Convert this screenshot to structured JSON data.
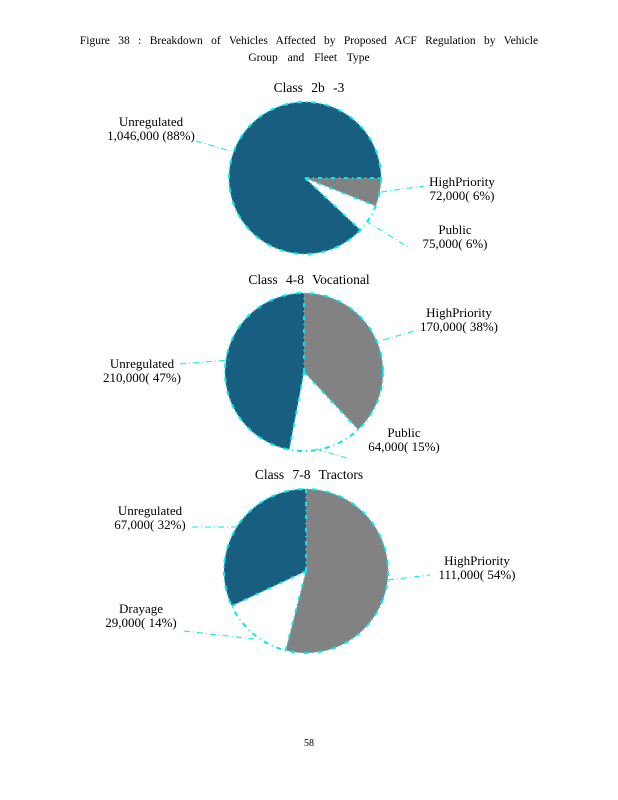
{
  "page": {
    "caption_line1": "Figure 38 : Breakdown of Vehicles Affected by Proposed ACF Regulation by Vehicle",
    "caption_line2": "Group and Fleet Type",
    "page_number": "58"
  },
  "colors": {
    "teal": "#175e80",
    "gray": "#828282",
    "white": "#ffffff",
    "cyan": "#00ecf2"
  },
  "chart_data": [
    {
      "type": "pie",
      "title": "Class 2b -3",
      "start_angle_deg": 0,
      "direction": "clockwise",
      "slices": [
        {
          "name": "HighPriority",
          "value": 72000,
          "pct": 6,
          "color": "gray",
          "label_name": "HighPriority",
          "label_value": "72,000( 6%)"
        },
        {
          "name": "Public",
          "value": 75000,
          "pct": 6,
          "color": "white",
          "label_name": "Public",
          "label_value": "75,000( 6%)"
        },
        {
          "name": "Unregulated",
          "value": 1046000,
          "pct": 88,
          "color": "teal",
          "label_name": "Unregulated",
          "label_value": "1,046,000 (88%)"
        }
      ]
    },
    {
      "type": "pie",
      "title": "Class 4-8 Vocational",
      "start_angle_deg": 90,
      "direction": "clockwise",
      "slices": [
        {
          "name": "HighPriority",
          "value": 170000,
          "pct": 38,
          "color": "gray",
          "label_name": "HighPriority",
          "label_value": "170,000( 38%)"
        },
        {
          "name": "Public",
          "value": 64000,
          "pct": 15,
          "color": "white",
          "label_name": "Public",
          "label_value": "64,000( 15%)"
        },
        {
          "name": "Unregulated",
          "value": 210000,
          "pct": 47,
          "color": "teal",
          "label_name": "Unregulated",
          "label_value": "210,000( 47%)"
        }
      ]
    },
    {
      "type": "pie",
      "title": "Class 7-8 Tractors",
      "start_angle_deg": 90,
      "direction": "clockwise",
      "slices": [
        {
          "name": "HighPriority",
          "value": 111000,
          "pct": 54,
          "color": "gray",
          "label_name": "HighPriority",
          "label_value": "111,000( 54%)"
        },
        {
          "name": "Drayage",
          "value": 29000,
          "pct": 14,
          "color": "white",
          "label_name": "Drayage",
          "label_value": "29,000( 14%)"
        },
        {
          "name": "Unregulated",
          "value": 67000,
          "pct": 32,
          "color": "teal",
          "label_name": "Unregulated",
          "label_value": "67,000( 32%)"
        }
      ]
    }
  ]
}
